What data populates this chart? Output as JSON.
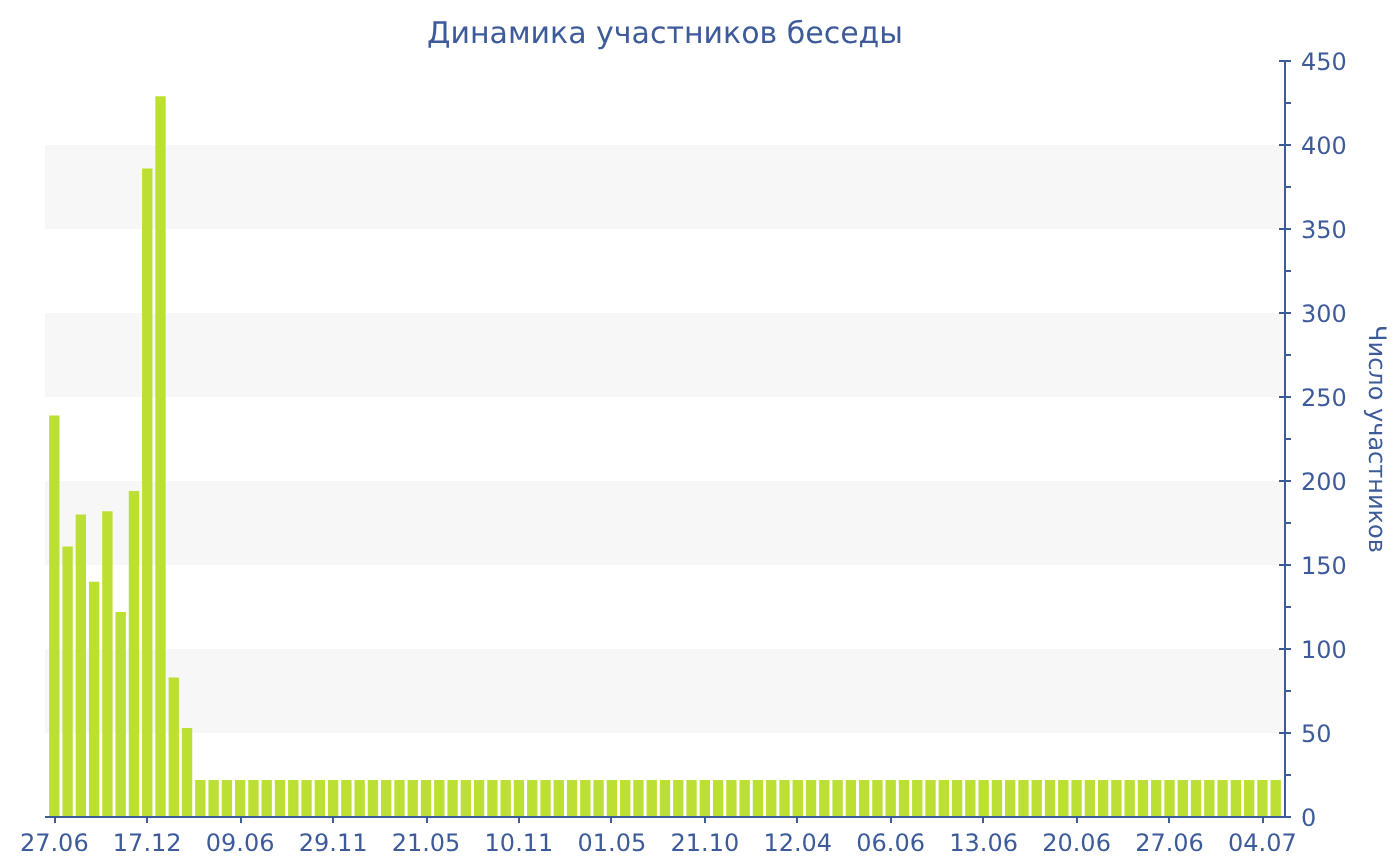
{
  "chart_data": {
    "type": "bar",
    "title": "Динамика участников беседы",
    "ylabel": "Число участников",
    "categories": [
      "27.06",
      null,
      null,
      null,
      null,
      null,
      null,
      "17.12",
      null,
      null,
      null,
      null,
      null,
      null,
      "09.06",
      null,
      null,
      null,
      null,
      null,
      null,
      "29.11",
      null,
      null,
      null,
      null,
      null,
      null,
      "21.05",
      null,
      null,
      null,
      null,
      null,
      null,
      "10.11",
      null,
      null,
      null,
      null,
      null,
      null,
      "01.05",
      null,
      null,
      null,
      null,
      null,
      null,
      "21.10",
      null,
      null,
      null,
      null,
      null,
      null,
      "12.04",
      null,
      null,
      null,
      null,
      null,
      null,
      "06.06",
      null,
      null,
      null,
      null,
      null,
      null,
      "13.06",
      null,
      null,
      null,
      null,
      null,
      null,
      "20.06",
      null,
      null,
      null,
      null,
      null,
      null,
      "27.06",
      null,
      null,
      null,
      null,
      null,
      null,
      "04.07",
      null
    ],
    "values": [
      239,
      161,
      180,
      140,
      182,
      122,
      194,
      386,
      429,
      83,
      53,
      22,
      22,
      22,
      22,
      22,
      22,
      22,
      22,
      22,
      22,
      22,
      22,
      22,
      22,
      22,
      22,
      22,
      22,
      22,
      22,
      22,
      22,
      22,
      22,
      22,
      22,
      22,
      22,
      22,
      22,
      22,
      22,
      22,
      22,
      22,
      22,
      22,
      22,
      22,
      22,
      22,
      22,
      22,
      22,
      22,
      22,
      22,
      22,
      22,
      22,
      22,
      22,
      22,
      22,
      22,
      22,
      22,
      22,
      22,
      22,
      22,
      22,
      22,
      22,
      22,
      22,
      22,
      22,
      22,
      22,
      22,
      22,
      22,
      22,
      22,
      22,
      22,
      22,
      22,
      22,
      22,
      22
    ],
    "color": "#bbe033",
    "ylim": [
      0,
      450
    ],
    "yticks": [
      0,
      50,
      100,
      150,
      200,
      250,
      300,
      350,
      400,
      450
    ],
    "bands": [
      {
        "axis": "y",
        "from": 50,
        "to": 100,
        "color": "#f7f7f7"
      },
      {
        "axis": "y",
        "from": 150,
        "to": 200,
        "color": "#f7f7f7"
      },
      {
        "axis": "y",
        "from": 250,
        "to": 300,
        "color": "#f7f7f7"
      },
      {
        "axis": "y",
        "from": 350,
        "to": 400,
        "color": "#f7f7f7"
      }
    ],
    "grid": false
  }
}
